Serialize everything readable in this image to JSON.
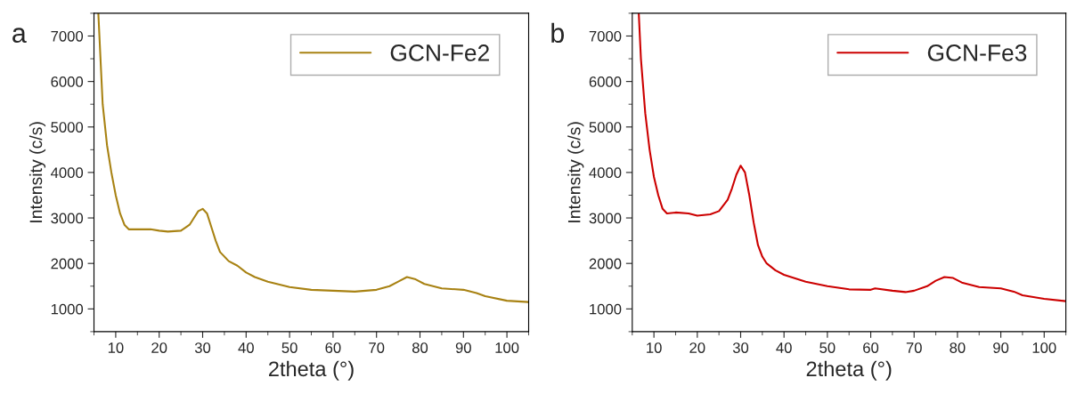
{
  "chart_data": [
    {
      "type": "line",
      "xlabel": "2theta (°)",
      "ylabel": "Intensity (c/s)",
      "annotations": [
        "a"
      ],
      "legend": "top right",
      "xlim": [
        5,
        105
      ],
      "ylim": [
        500,
        7500
      ],
      "xticks": [
        10,
        20,
        30,
        40,
        50,
        60,
        70,
        80,
        90,
        100
      ],
      "yticks": [
        1000,
        2000,
        3000,
        4000,
        5000,
        6000,
        7000
      ],
      "grid": false,
      "series": [
        {
          "name": "GCN-Fe2",
          "color": "#a88213",
          "x": [
            6,
            7,
            8,
            9,
            10,
            11,
            12,
            13,
            15,
            18,
            20,
            22,
            25,
            27,
            28,
            29,
            30,
            31,
            32,
            33,
            34,
            36,
            38,
            40,
            42,
            45,
            50,
            55,
            60,
            65,
            70,
            73,
            75,
            77,
            79,
            81,
            85,
            90,
            93,
            95,
            100,
            105
          ],
          "values": [
            7500,
            5500,
            4600,
            4000,
            3500,
            3100,
            2850,
            2750,
            2750,
            2750,
            2720,
            2700,
            2720,
            2850,
            3000,
            3150,
            3200,
            3100,
            2800,
            2500,
            2250,
            2050,
            1950,
            1800,
            1700,
            1600,
            1480,
            1420,
            1400,
            1380,
            1420,
            1500,
            1600,
            1700,
            1650,
            1550,
            1450,
            1420,
            1350,
            1280,
            1180,
            1150
          ]
        }
      ]
    },
    {
      "type": "line",
      "xlabel": "2theta (°)",
      "ylabel": "Intensity (c/s)",
      "annotations": [
        "b"
      ],
      "legend": "top right",
      "xlim": [
        5,
        105
      ],
      "ylim": [
        500,
        7500
      ],
      "xticks": [
        10,
        20,
        30,
        40,
        50,
        60,
        70,
        80,
        90,
        100
      ],
      "yticks": [
        1000,
        2000,
        3000,
        4000,
        5000,
        6000,
        7000
      ],
      "grid": false,
      "series": [
        {
          "name": "GCN-Fe3",
          "color": "#cc0000",
          "x": [
            6.5,
            7,
            8,
            9,
            10,
            11,
            12,
            13,
            15,
            18,
            20,
            23,
            25,
            27,
            28,
            29,
            30,
            31,
            32,
            33,
            34,
            35,
            36,
            38,
            40,
            45,
            50,
            55,
            60,
            61,
            65,
            68,
            70,
            73,
            75,
            77,
            79,
            81,
            85,
            90,
            93,
            95,
            100,
            105
          ],
          "values": [
            7500,
            6500,
            5300,
            4500,
            3900,
            3500,
            3200,
            3100,
            3120,
            3100,
            3050,
            3080,
            3150,
            3400,
            3650,
            3950,
            4150,
            4000,
            3500,
            2900,
            2400,
            2150,
            2000,
            1850,
            1750,
            1600,
            1500,
            1430,
            1420,
            1450,
            1400,
            1370,
            1400,
            1500,
            1620,
            1700,
            1680,
            1580,
            1480,
            1450,
            1380,
            1300,
            1220,
            1170
          ]
        }
      ]
    }
  ]
}
